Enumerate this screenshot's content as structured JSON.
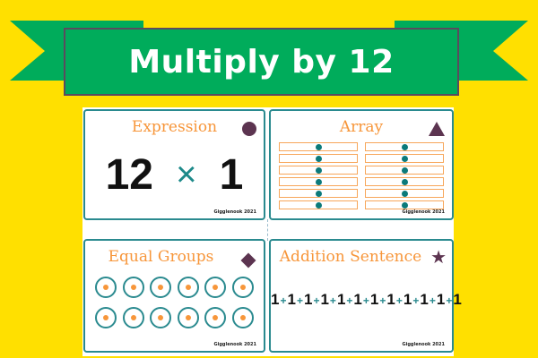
{
  "banner": {
    "title": "Multiply by 12",
    "colors": {
      "background": "#ffe000",
      "banner": "#00ac5b"
    }
  },
  "cards": {
    "expression": {
      "title": "Expression",
      "left": "12",
      "operator": "×",
      "right": "1",
      "shape": "circle",
      "footer": "Gigglenook 2021"
    },
    "array": {
      "title": "Array",
      "rows": 6,
      "columns": 2,
      "shape": "triangle",
      "footer": "Gigglenook 2021"
    },
    "equal_groups": {
      "title": "Equal Groups",
      "groups": 12,
      "items_per_group": 1,
      "shape": "diamond",
      "footer": "Gigglenook 2021"
    },
    "addition": {
      "title": "Addition Sentence",
      "addend": "1",
      "plus": "+",
      "count": 12,
      "shape": "star",
      "footer": "Gigglenook 2021"
    }
  },
  "colors": {
    "accent_text": "#f7963a",
    "teal": "#2a8a8f",
    "shape": "#5c3450"
  }
}
